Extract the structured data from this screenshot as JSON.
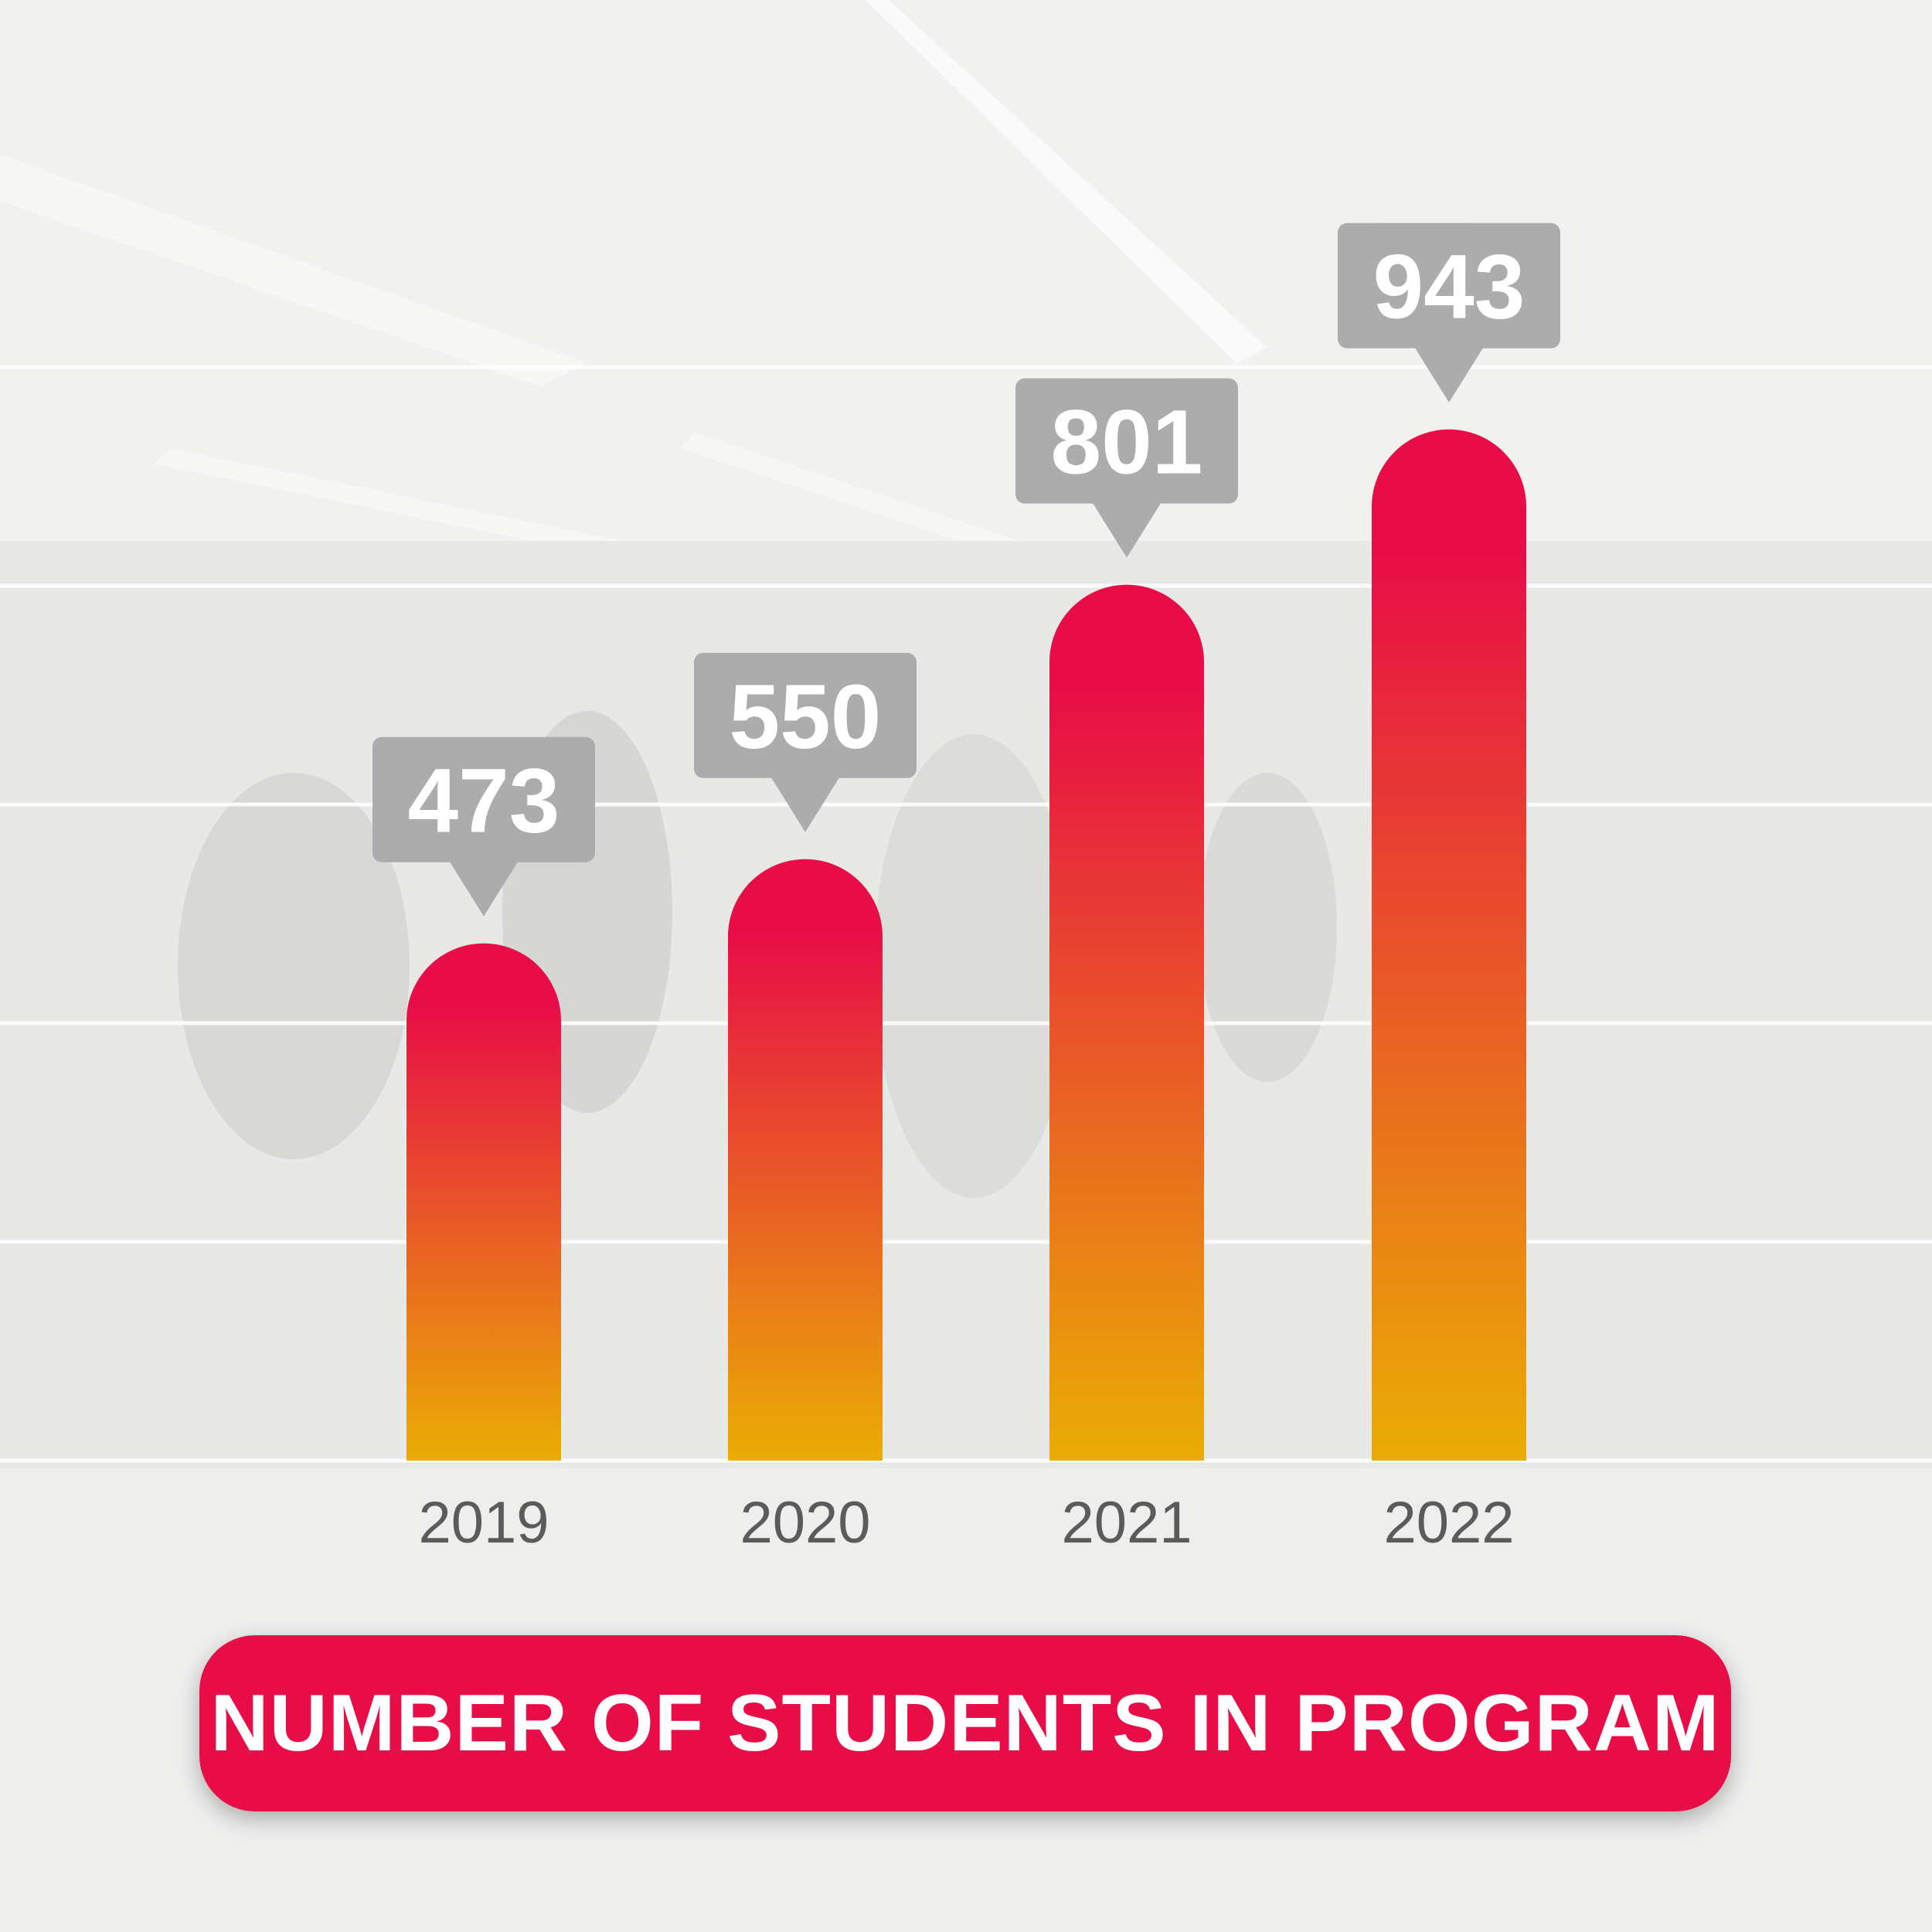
{
  "colors": {
    "bar_top": "#e80d47",
    "bar_bottom": "#eaad04",
    "callout": "#acacac",
    "banner": "#e80d47",
    "background": "#ededec"
  },
  "chart_data": {
    "type": "bar",
    "title": "NUMBER OF STUDENTS IN PROGRAM",
    "categories": [
      "2019",
      "2020",
      "2021",
      "2022"
    ],
    "values": [
      473,
      550,
      801,
      943
    ],
    "data_labels": [
      "473",
      "550",
      "801",
      "943"
    ],
    "xlabel": "",
    "ylabel": "",
    "ylim": [
      0,
      1000
    ],
    "grid": true,
    "legend": "none"
  }
}
